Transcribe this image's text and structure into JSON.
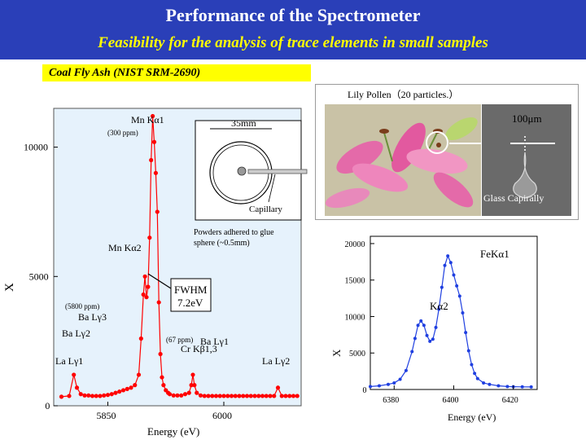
{
  "header": {
    "title": "Performance of the Spectrometer",
    "subtitle": "Feasibility for the analysis of trace elements in small samples"
  },
  "sample_banner": "Coal Fly Ash (NIST SRM-2690)",
  "left_plot": {
    "ylabel": "X",
    "xlabel": "Energy (eV)",
    "x_ticks": [
      "5850",
      "6000"
    ],
    "y_ticks": [
      "0",
      "5000",
      "10000"
    ],
    "peak_labels": {
      "mn_ka1": "Mn Kα1",
      "mn_ka2": "Mn Kα2",
      "ba_lg3": "Ba Lγ3",
      "ba_lg2": "Ba Lγ2",
      "la_lg1": "La Lγ1",
      "cr_kb": "Cr Kβ1,3",
      "ba_lg1": "Ba Lγ1",
      "la_lg2": "La Lγ2"
    },
    "conc_labels": {
      "ppm300": "(300 ppm)",
      "ppm5800": "(5800 ppm)",
      "ppm67": "(67 ppm)"
    },
    "fwhm": [
      "FWHM",
      "7.2eV"
    ],
    "inset": {
      "dimension": "35mm",
      "capillary": "Capillary",
      "caption": [
        "Powders adhered to glue",
        "sphere (~0.5mm)"
      ]
    }
  },
  "pollen": {
    "title": "Lily Pollen（20 particles.）",
    "scale": "100μm",
    "capillary": "Glass Capirally"
  },
  "right_plot": {
    "ylabel": "X",
    "xlabel": "Energy (eV)",
    "x_ticks": [
      "6380",
      "6400",
      "6420"
    ],
    "y_ticks": [
      "0",
      "5000",
      "10000",
      "15000",
      "20000"
    ],
    "peak_labels": {
      "fe_ka1": "FeKα1",
      "ka2": "Kα2"
    }
  },
  "colors": {
    "header": "#2a3fb8",
    "banner": "#ffff00",
    "spectrum_left": "#ff0000",
    "spectrum_right": "#1f3fe0",
    "plot_bg": "#e6f2fc"
  },
  "chart_data": [
    {
      "type": "line",
      "title": "",
      "xlabel": "Energy (eV)",
      "ylabel": "X",
      "xlim": [
        5780,
        6100
      ],
      "ylim": [
        0,
        11500
      ],
      "series": [
        {
          "x": [
            5790,
            5800,
            5806,
            5810,
            5815,
            5820,
            5825,
            5830,
            5835,
            5840,
            5845,
            5850,
            5855,
            5860,
            5865,
            5870,
            5875,
            5880,
            5885,
            5890,
            5893,
            5896,
            5898,
            5900,
            5902,
            5904,
            5906,
            5908,
            5910,
            5912,
            5914,
            5916,
            5918,
            5920,
            5922,
            5925,
            5928,
            5930,
            5935,
            5940,
            5945,
            5950,
            5955,
            5958,
            5960,
            5962,
            5965,
            5970,
            5975,
            5980,
            5985,
            5990,
            5995,
            6000,
            6005,
            6010,
            6015,
            6020,
            6025,
            6030,
            6035,
            6040,
            6045,
            6050,
            6055,
            6060,
            6065,
            6070,
            6075,
            6080,
            6085,
            6090,
            6095
          ],
          "y": [
            350,
            380,
            1200,
            700,
            450,
            400,
            400,
            380,
            380,
            380,
            400,
            420,
            450,
            500,
            550,
            600,
            650,
            700,
            800,
            1200,
            2600,
            4300,
            5000,
            4200,
            4600,
            6500,
            9500,
            11200,
            10200,
            9000,
            7500,
            4000,
            2000,
            1100,
            800,
            600,
            500,
            450,
            400,
            400,
            400,
            450,
            500,
            800,
            1200,
            800,
            500,
            400,
            380,
            380,
            380,
            380,
            380,
            380,
            380,
            380,
            380,
            380,
            380,
            380,
            380,
            380,
            380,
            380,
            380,
            380,
            380,
            700,
            380,
            380,
            380,
            380,
            380
          ]
        }
      ]
    },
    {
      "type": "line",
      "title": "",
      "xlabel": "Energy (eV)",
      "ylabel": "X",
      "xlim": [
        6372,
        6428
      ],
      "ylim": [
        0,
        21000
      ],
      "series": [
        {
          "x": [
            6372,
            6375,
            6378,
            6380,
            6382,
            6384,
            6386,
            6387,
            6388,
            6389,
            6390,
            6391,
            6392,
            6393,
            6394,
            6395,
            6396,
            6397,
            6398,
            6399,
            6400,
            6401,
            6402,
            6403,
            6404,
            6405,
            6406,
            6407,
            6408,
            6410,
            6412,
            6415,
            6418,
            6420,
            6423,
            6426
          ],
          "y": [
            400,
            500,
            700,
            900,
            1400,
            2600,
            5200,
            7000,
            8800,
            9400,
            8800,
            7400,
            6600,
            6900,
            8500,
            11000,
            14000,
            17000,
            18300,
            17400,
            15700,
            14200,
            12800,
            10500,
            7800,
            5300,
            3400,
            2200,
            1500,
            900,
            700,
            500,
            400,
            380,
            360,
            350
          ]
        }
      ]
    }
  ]
}
